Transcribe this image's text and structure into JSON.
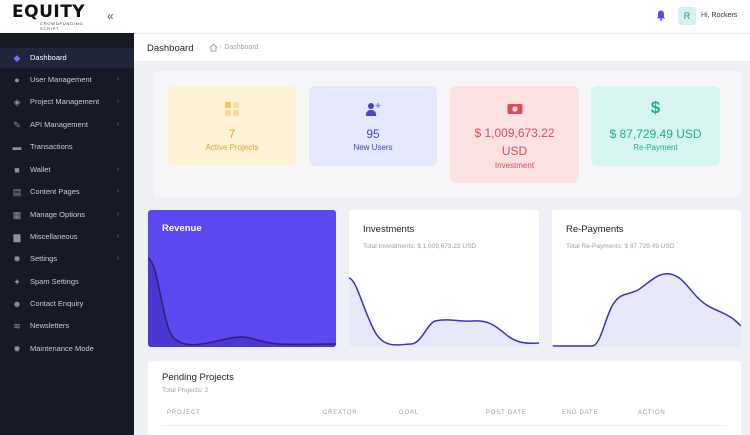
{
  "brand": {
    "logo_text": "EQUITY",
    "logo_sub": "CROWDFUNDING SCRIPT"
  },
  "header": {
    "greeting": "Hi,",
    "username": "Rockers",
    "avatar_initial": "R"
  },
  "sidebar": {
    "items": [
      {
        "label": "Dashboard",
        "icon": "diamond-icon",
        "chevron": false,
        "active": true
      },
      {
        "label": "User Management",
        "icon": "user-icon",
        "chevron": true
      },
      {
        "label": "Project Management",
        "icon": "layers-icon",
        "chevron": true
      },
      {
        "label": "API Management",
        "icon": "wrench-icon",
        "chevron": true
      },
      {
        "label": "Transactions",
        "icon": "card-icon",
        "chevron": false
      },
      {
        "label": "Wallet",
        "icon": "wallet-icon",
        "chevron": true
      },
      {
        "label": "Content Pages",
        "icon": "pages-icon",
        "chevron": true
      },
      {
        "label": "Manage Options",
        "icon": "options-icon",
        "chevron": true
      },
      {
        "label": "Miscellaneous",
        "icon": "folder-icon",
        "chevron": true
      },
      {
        "label": "Settings",
        "icon": "gear-icon",
        "chevron": true
      },
      {
        "label": "Spam Settings",
        "icon": "spam-icon",
        "chevron": false
      },
      {
        "label": "Contact Enquiry",
        "icon": "contact-icon",
        "chevron": false
      },
      {
        "label": "Newsletters",
        "icon": "wifi-icon",
        "chevron": false
      },
      {
        "label": "Maintenance Mode",
        "icon": "gear-icon",
        "chevron": false
      }
    ]
  },
  "breadcrumb": {
    "title": "Dashboard",
    "separator": "-",
    "current": "Dashboard"
  },
  "stats": [
    {
      "value": "7",
      "label": "Active Projects",
      "bg": "#fdf1d6",
      "color": "#e0a634"
    },
    {
      "value": "95",
      "label": "New Users",
      "bg": "#e5e7fb",
      "color": "#4b45c8"
    },
    {
      "value_line1": "$ 1,009,673.22",
      "value_line2": "USD",
      "label": "Investment",
      "bg": "#fbe1e2",
      "color": "#e14b55"
    },
    {
      "value": "$ 87,729.49 USD",
      "label": "Re-Payment",
      "bg": "#d6f5f0",
      "color": "#1fae96"
    }
  ],
  "charts": {
    "revenue": {
      "title": "Revenue"
    },
    "investments": {
      "title": "Investments",
      "subtitle": "Total Investments: $ 1,009,673.22 USD"
    },
    "repayments": {
      "title": "Re-Payments",
      "subtitle": "Total Re-Payments: $ 87,729.49 USD"
    }
  },
  "pending": {
    "title": "Pending Projects",
    "subtitle": "Total Projects: 2",
    "columns": [
      "PROJECT",
      "CREATOR",
      "GOAL",
      "POST DATE",
      "END DATE",
      "ACTION"
    ]
  },
  "colors": {
    "accent": "#5b48f0",
    "sidebar_bg": "#171a26"
  }
}
